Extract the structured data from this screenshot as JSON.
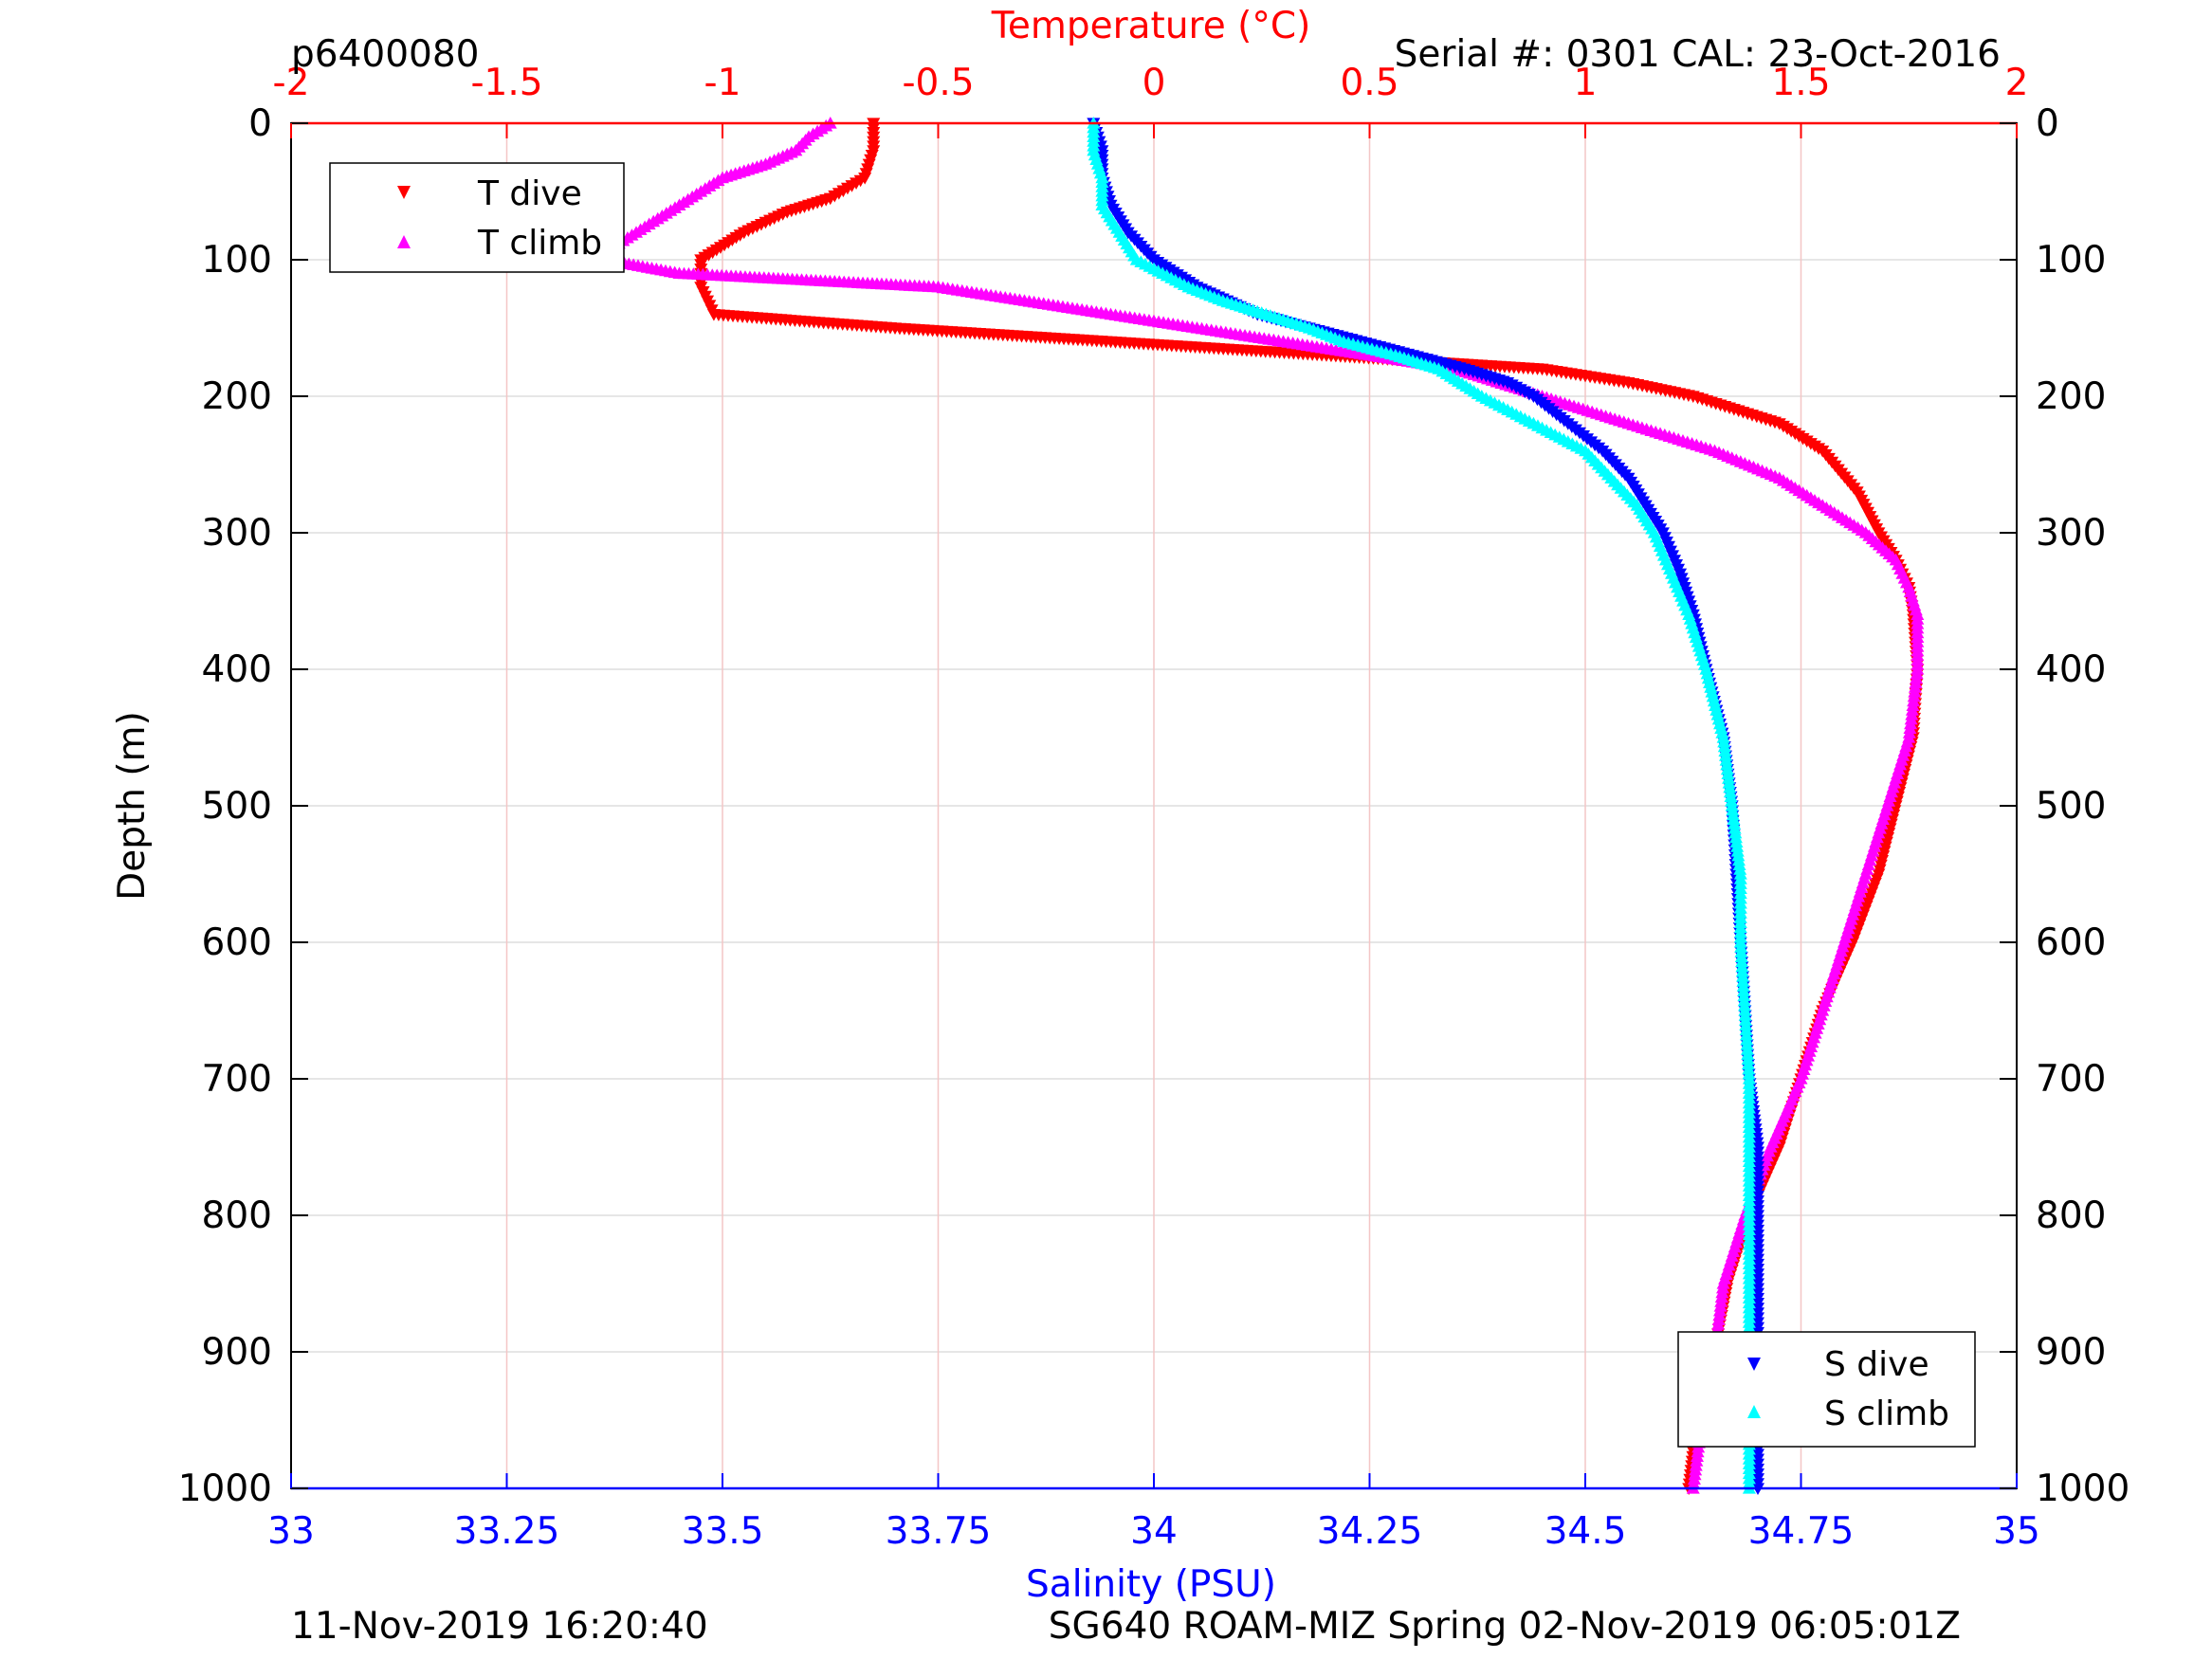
{
  "header": {
    "profile_id": "p6400080",
    "serial": "Serial #: 0301  CAL: 23-Oct-2016"
  },
  "footer": {
    "left": "11-Nov-2019 16:20:40",
    "right": "SG640 ROAM-MIZ Spring 02-Nov-2019 06:05:01Z"
  },
  "colors": {
    "temperature_axis": "#ff0000",
    "salinity_axis": "#0000ff",
    "t_dive": "#ff0000",
    "t_climb": "#ff00ff",
    "s_dive": "#0000ff",
    "s_climb": "#00ffff",
    "temp_grid": "#f4c6c6",
    "depth_grid": "#dddddd"
  },
  "chart_data": {
    "type": "scatter",
    "ylabel": "Depth (m)",
    "top_axis_label": "Temperature (°C)",
    "bottom_axis_label": "Salinity (PSU)",
    "ylim": [
      0,
      1000
    ],
    "y_reversed": true,
    "temperature_lim": [
      -2,
      2
    ],
    "salinity_lim": [
      33,
      35
    ],
    "depth_ticks": [
      "0",
      "100",
      "200",
      "300",
      "400",
      "500",
      "600",
      "700",
      "800",
      "900",
      "1000"
    ],
    "temperature_ticks": [
      "-2",
      "-1.5",
      "-1",
      "-0.5",
      "0",
      "0.5",
      "1",
      "1.5",
      "2"
    ],
    "salinity_ticks": [
      "33",
      "33.25",
      "33.5",
      "33.75",
      "34",
      "34.25",
      "34.5",
      "34.75",
      "35"
    ],
    "grid": "vertical on temperature ticks, horizontal on depth ticks",
    "legend_temperature": {
      "position": "top-left",
      "entries": [
        "T dive",
        "T climb"
      ]
    },
    "legend_salinity": {
      "position": "bottom-right",
      "entries": [
        "S dive",
        "S climb"
      ]
    },
    "series": [
      {
        "name": "T dive",
        "axis": "temperature",
        "marker": "triangle-down",
        "depth": [
          0,
          20,
          40,
          55,
          65,
          80,
          100,
          120,
          140,
          150,
          160,
          170,
          180,
          190,
          200,
          220,
          240,
          270,
          300,
          320,
          340,
          360,
          400,
          450,
          500,
          550,
          600,
          650,
          700,
          750,
          800,
          850,
          900,
          950,
          1000
        ],
        "values": [
          -0.65,
          -0.65,
          -0.67,
          -0.75,
          -0.85,
          -0.95,
          -1.05,
          -1.05,
          -1.02,
          -0.6,
          -0.1,
          0.4,
          0.9,
          1.1,
          1.25,
          1.45,
          1.55,
          1.63,
          1.68,
          1.72,
          1.75,
          1.76,
          1.77,
          1.76,
          1.72,
          1.68,
          1.62,
          1.55,
          1.5,
          1.45,
          1.38,
          1.33,
          1.3,
          1.26,
          1.24
        ]
      },
      {
        "name": "T climb",
        "axis": "temperature",
        "marker": "triangle-up",
        "depth": [
          0,
          10,
          20,
          30,
          40,
          50,
          60,
          70,
          80,
          90,
          100,
          110,
          120,
          130,
          140,
          150,
          160,
          170,
          180,
          200,
          220,
          240,
          260,
          280,
          300,
          320,
          340,
          360,
          400,
          450,
          500,
          550,
          600,
          650,
          700,
          750,
          800,
          850,
          900,
          950,
          1000
        ],
        "values": [
          -0.75,
          -0.8,
          -0.83,
          -0.9,
          -1.0,
          -1.05,
          -1.1,
          -1.15,
          -1.2,
          -1.25,
          -1.27,
          -1.1,
          -0.5,
          -0.3,
          -0.1,
          0.1,
          0.3,
          0.5,
          0.7,
          0.9,
          1.1,
          1.3,
          1.45,
          1.55,
          1.65,
          1.72,
          1.75,
          1.77,
          1.77,
          1.75,
          1.7,
          1.65,
          1.6,
          1.55,
          1.5,
          1.43,
          1.37,
          1.32,
          1.3,
          1.27,
          1.25
        ]
      },
      {
        "name": "S dive",
        "axis": "salinity",
        "marker": "triangle-down",
        "depth": [
          0,
          20,
          40,
          60,
          80,
          100,
          120,
          140,
          150,
          160,
          170,
          180,
          190,
          200,
          220,
          240,
          260,
          280,
          300,
          330,
          360,
          400,
          450,
          500,
          550,
          600,
          650,
          700,
          750,
          800,
          850,
          900,
          950,
          1000
        ],
        "values": [
          33.93,
          33.94,
          33.94,
          33.95,
          33.97,
          34.0,
          34.05,
          34.12,
          34.18,
          34.24,
          34.3,
          34.36,
          34.41,
          34.44,
          34.48,
          34.52,
          34.55,
          34.57,
          34.59,
          34.61,
          34.625,
          34.64,
          34.66,
          34.67,
          34.675,
          34.68,
          34.685,
          34.69,
          34.7,
          34.7,
          34.7,
          34.7,
          34.7,
          34.7
        ]
      },
      {
        "name": "S climb",
        "axis": "salinity",
        "marker": "triangle-up",
        "depth": [
          0,
          20,
          40,
          60,
          80,
          100,
          120,
          130,
          140,
          150,
          160,
          170,
          180,
          200,
          220,
          240,
          260,
          280,
          300,
          330,
          360,
          400,
          450,
          500,
          550,
          600,
          650,
          700,
          750,
          800,
          850,
          900,
          950,
          1000
        ],
        "values": [
          33.93,
          33.93,
          33.94,
          33.94,
          33.96,
          33.98,
          34.04,
          34.08,
          34.13,
          34.18,
          34.22,
          34.28,
          34.33,
          34.38,
          34.44,
          34.5,
          34.53,
          34.56,
          34.58,
          34.6,
          34.62,
          34.64,
          34.66,
          34.67,
          34.68,
          34.68,
          34.685,
          34.69,
          34.69,
          34.69,
          34.69,
          34.69,
          34.69,
          34.69
        ]
      }
    ]
  }
}
